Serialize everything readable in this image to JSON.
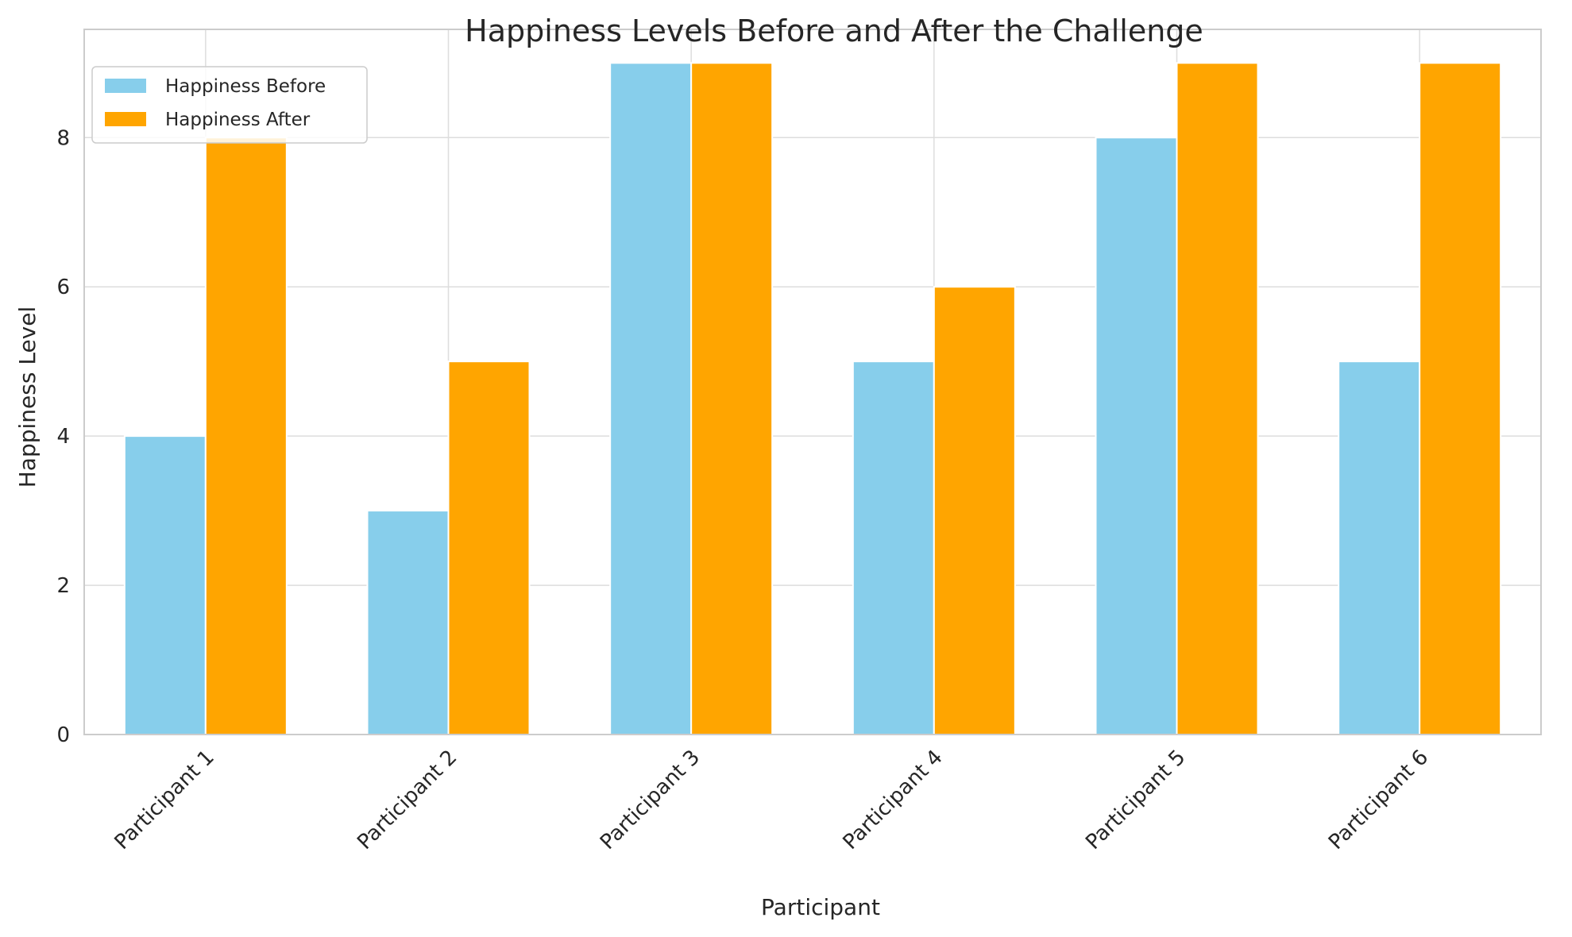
{
  "chart_data": {
    "type": "bar",
    "title": "Happiness Levels Before and After the Challenge",
    "xlabel": "Participant",
    "ylabel": "Happiness Level",
    "categories": [
      "Participant 1",
      "Participant 2",
      "Participant 3",
      "Participant 4",
      "Participant 5",
      "Participant 6"
    ],
    "series": [
      {
        "name": "Happiness Before",
        "values": [
          4,
          3,
          9,
          5,
          8,
          5
        ],
        "color": "#87ceeb"
      },
      {
        "name": "Happiness After",
        "values": [
          8,
          5,
          9,
          6,
          9,
          9
        ],
        "color": "#ffa500"
      }
    ],
    "ylim": [
      0,
      9.45
    ],
    "yticks": [
      "0",
      "2",
      "4",
      "6",
      "8"
    ],
    "grid": true,
    "legend_position": "top-left"
  }
}
